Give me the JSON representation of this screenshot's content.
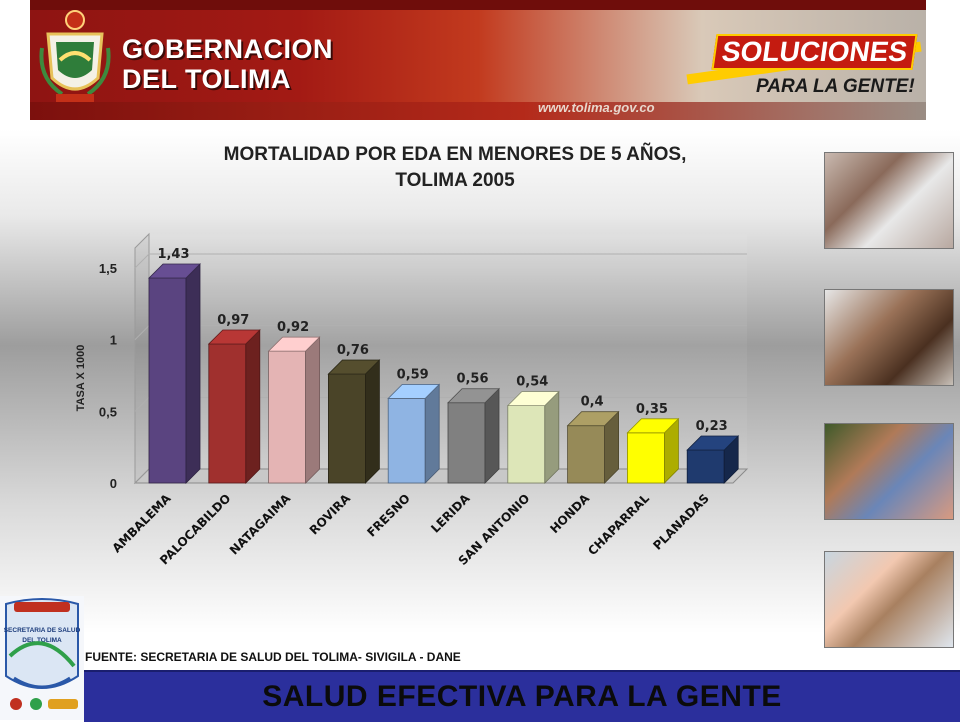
{
  "header": {
    "title_line1": "GOBERNACION",
    "title_line2": "DEL TOLIMA",
    "slogan_line1": "SOLUCIONES",
    "slogan_line2": "PARA LA GENTE!",
    "url": "www.tolima.gov.co"
  },
  "chart_data": {
    "type": "bar",
    "title": "MORTALIDAD POR EDA EN MENORES DE 5 AÑOS,\nTOLIMA 2005",
    "xlabel": "",
    "ylabel": "TASA X 1000",
    "ylim": [
      0,
      1.5
    ],
    "yticks": [
      "0",
      "0,5",
      "1",
      "1,5"
    ],
    "ytick_values": [
      0,
      0.5,
      1,
      1.5
    ],
    "categories": [
      "AMBALEMA",
      "PALOCABILDO",
      "NATAGAIMA",
      "ROVIRA",
      "FRESNO",
      "LERIDA",
      "SAN ANTONIO",
      "HONDA",
      "CHAPARRAL",
      "PLANADAS"
    ],
    "values": [
      1.43,
      0.97,
      0.92,
      0.76,
      0.59,
      0.56,
      0.54,
      0.4,
      0.35,
      0.23
    ],
    "value_labels": [
      "1,43",
      "0,97",
      "0,92",
      "0,76",
      "0,59",
      "0,56",
      "0,54",
      "0,4",
      "0,35",
      "0,23"
    ],
    "colors": [
      "#5a4480",
      "#a0302e",
      "#e4b4b4",
      "#4a4428",
      "#8fb4e3",
      "#808080",
      "#dde6b8",
      "#968a58",
      "#ffff00",
      "#1f3a6e"
    ],
    "grid": true,
    "legend": "none",
    "three_d": true
  },
  "source_note": "FUENTE: SECRETARIA DE SALUD DEL TOLIMA- SIVIGILA - DANE",
  "footer": {
    "slogan": "SALUD EFECTIVA PARA LA GENTE"
  },
  "logo": {
    "line1": "SECRETARIA DE SALUD",
    "line2": "DEL TOLIMA"
  }
}
